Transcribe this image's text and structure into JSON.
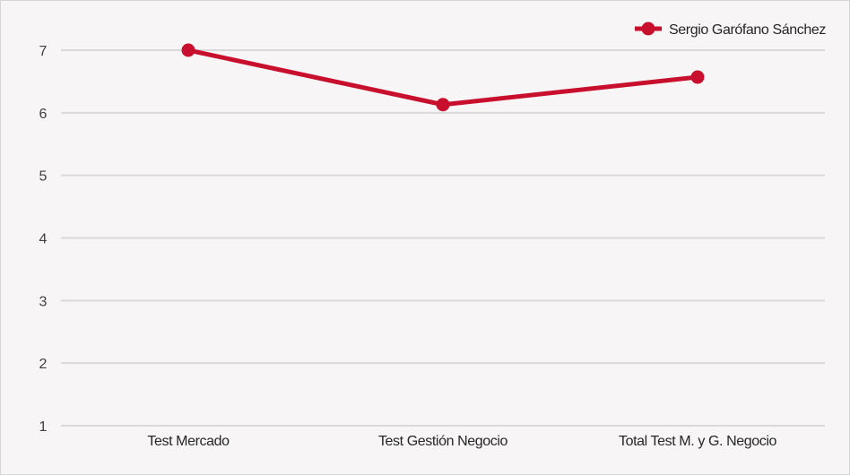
{
  "chart_data": {
    "type": "line",
    "categories": [
      "Test Mercado",
      "Test Gestión Negocio",
      "Total Test M. y G. Negocio"
    ],
    "series": [
      {
        "name": "Sergio Garófano Sánchez",
        "values": [
          7.0,
          6.13,
          6.57
        ],
        "color": "#c8102e"
      }
    ],
    "ylim": [
      1,
      7
    ],
    "yticks": [
      "1",
      "2",
      "3",
      "4",
      "5",
      "6",
      "7"
    ],
    "grid": true,
    "legend": "top-right",
    "colors": {
      "background": "#f7f5f6",
      "grid": "#d9d9d9",
      "series": "#c8102e"
    }
  }
}
